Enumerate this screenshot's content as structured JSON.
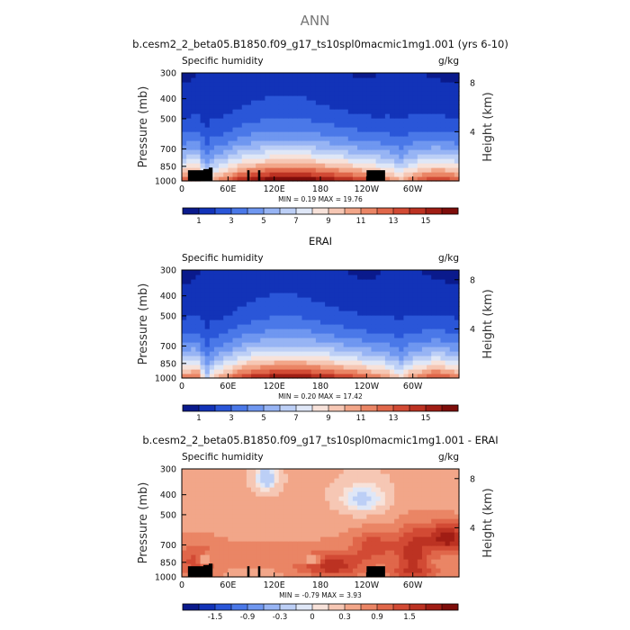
{
  "figure": {
    "title": "ANN",
    "panel_left_label": "Specific humidity",
    "panel_right_label": "g/kg",
    "ylabel_left": "Pressure (mb)",
    "ylabel_right": "Height (km)"
  },
  "chart_data": [
    {
      "type": "heatmap",
      "title": "b.cesm2_2_beta05.B1850.f09_g17_ts10spl0macmic1mg1.001 (yrs 6-10)",
      "field": "Specific humidity",
      "units": "g/kg",
      "x_ticks": [
        "0",
        "60E",
        "120E",
        "180",
        "120W",
        "60W"
      ],
      "x_tick_values": [
        0,
        60,
        120,
        180,
        240,
        300
      ],
      "xlim": [
        0,
        360
      ],
      "y_ticks": [
        "300",
        "400",
        "500",
        "700",
        "850",
        "1000"
      ],
      "y_tick_values": [
        300,
        400,
        500,
        700,
        850,
        1000
      ],
      "ylim": [
        1000,
        300
      ],
      "height_ticks": [
        "8",
        "4"
      ],
      "height_tick_values": [
        8,
        4
      ],
      "stats": "MIN =    0.19   MAX =   19.76",
      "min": 0.19,
      "max": 19.76,
      "colorbar_labels": [
        "1",
        "3",
        "5",
        "7",
        "9",
        "11",
        "13",
        "15"
      ],
      "levels": [
        0,
        1,
        2,
        3,
        4,
        5,
        6,
        7,
        8,
        9,
        10,
        11,
        12,
        13,
        14,
        15,
        16
      ],
      "colors": [
        "#0a1a8c",
        "#1233b8",
        "#2a56d8",
        "#4a78e8",
        "#6f97f0",
        "#97b4f4",
        "#bccff6",
        "#dfe7f7",
        "#f7e2da",
        "#f6c7b4",
        "#f2a689",
        "#ea8565",
        "#e0674a",
        "#d24a34",
        "#bc3222",
        "#a01d14",
        "#7e0d0a"
      ]
    },
    {
      "type": "heatmap",
      "title": "ERAI",
      "field": "Specific humidity",
      "units": "g/kg",
      "x_ticks": [
        "0",
        "60E",
        "120E",
        "180",
        "120W",
        "60W"
      ],
      "x_tick_values": [
        0,
        60,
        120,
        180,
        240,
        300
      ],
      "xlim": [
        0,
        360
      ],
      "y_ticks": [
        "300",
        "400",
        "500",
        "700",
        "850",
        "1000"
      ],
      "y_tick_values": [
        300,
        400,
        500,
        700,
        850,
        1000
      ],
      "ylim": [
        1000,
        300
      ],
      "height_ticks": [
        "8",
        "4"
      ],
      "height_tick_values": [
        8,
        4
      ],
      "stats": "MIN =    0.20   MAX =   17.42",
      "min": 0.2,
      "max": 17.42,
      "colorbar_labels": [
        "1",
        "3",
        "5",
        "7",
        "9",
        "11",
        "13",
        "15"
      ],
      "levels": [
        0,
        1,
        2,
        3,
        4,
        5,
        6,
        7,
        8,
        9,
        10,
        11,
        12,
        13,
        14,
        15,
        16
      ],
      "colors": [
        "#0a1a8c",
        "#1233b8",
        "#2a56d8",
        "#4a78e8",
        "#6f97f0",
        "#97b4f4",
        "#bccff6",
        "#dfe7f7",
        "#f7e2da",
        "#f6c7b4",
        "#f2a689",
        "#ea8565",
        "#e0674a",
        "#d24a34",
        "#bc3222",
        "#a01d14",
        "#7e0d0a"
      ]
    },
    {
      "type": "heatmap",
      "title": "b.cesm2_2_beta05.B1850.f09_g17_ts10spl0macmic1mg1.001 - ERAI",
      "field": "Specific humidity",
      "units": "g/kg",
      "x_ticks": [
        "0",
        "60E",
        "120E",
        "180",
        "120W",
        "60W"
      ],
      "x_tick_values": [
        0,
        60,
        120,
        180,
        240,
        300
      ],
      "xlim": [
        0,
        360
      ],
      "y_ticks": [
        "300",
        "400",
        "500",
        "700",
        "850",
        "1000"
      ],
      "y_tick_values": [
        300,
        400,
        500,
        700,
        850,
        1000
      ],
      "ylim": [
        1000,
        300
      ],
      "height_ticks": [
        "8",
        "4"
      ],
      "height_tick_values": [
        8,
        4
      ],
      "stats": "MIN =   -0.79   MAX =    3.93",
      "min": -0.79,
      "max": 3.93,
      "colorbar_labels": [
        "-1.5",
        "-0.9",
        "-0.3",
        "0",
        "0.3",
        "0.9",
        "1.5"
      ],
      "levels": [
        -2.0,
        -1.8,
        -1.5,
        -1.2,
        -0.9,
        -0.6,
        -0.3,
        -0.1,
        0,
        0.1,
        0.3,
        0.6,
        0.9,
        1.2,
        1.5,
        1.8,
        2.0
      ],
      "colors": [
        "#0a1a8c",
        "#1233b8",
        "#2a56d8",
        "#4a78e8",
        "#6f97f0",
        "#97b4f4",
        "#bccff6",
        "#dfe7f7",
        "#f7e2da",
        "#f6c7b4",
        "#f2a689",
        "#ea8565",
        "#e0674a",
        "#d24a34",
        "#bc3222",
        "#a01d14",
        "#7e0d0a"
      ]
    }
  ]
}
